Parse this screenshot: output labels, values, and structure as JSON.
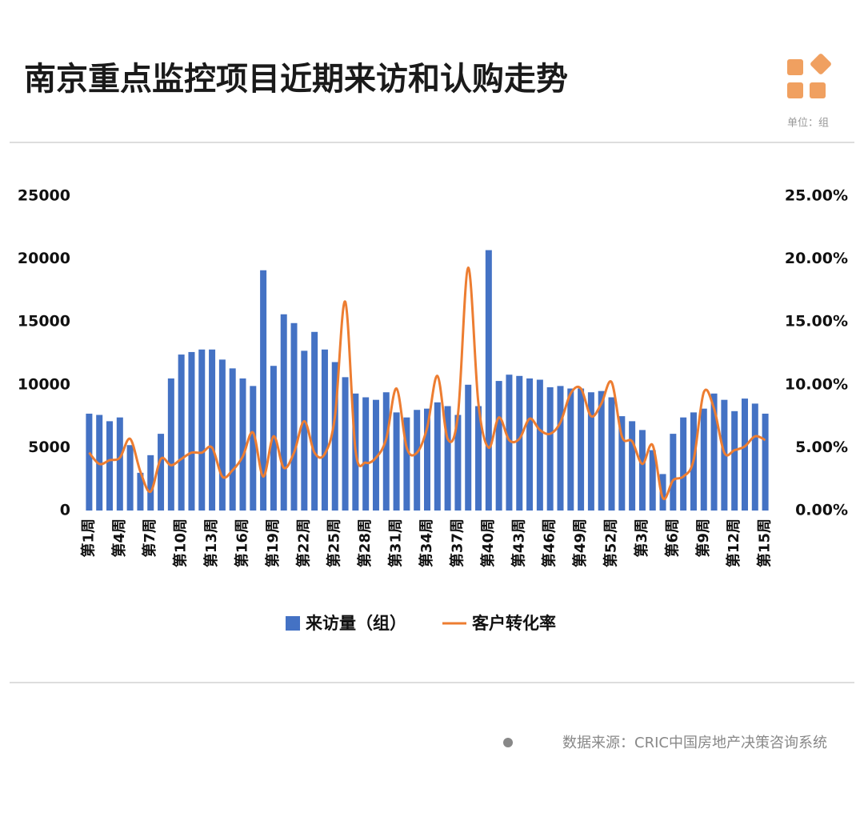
{
  "chart_data": {
    "type": "bar_line",
    "title": "南京重点监控项目近期来访和认购走势",
    "unit": "单位：组",
    "source": "数据来源：CRIC中国房地产决策咨询系统",
    "categories": [
      "第1周",
      null,
      null,
      "第4周",
      null,
      null,
      "第7周",
      null,
      null,
      "第10周",
      null,
      null,
      "第13周",
      null,
      null,
      "第16周",
      null,
      null,
      "第19周",
      null,
      null,
      "第22周",
      null,
      null,
      "第25周",
      null,
      null,
      "第28周",
      null,
      null,
      "第31周",
      null,
      null,
      "第34周",
      null,
      null,
      "第37周",
      null,
      null,
      "第40周",
      null,
      null,
      "第43周",
      null,
      null,
      "第46周",
      null,
      null,
      "第49周",
      null,
      null,
      "第52周",
      null,
      null,
      "第3周",
      null,
      null,
      "第6周",
      null,
      null,
      "第9周",
      null,
      null,
      "第12周",
      null,
      null,
      "第15周"
    ],
    "series": [
      {
        "name": "来访量（组）",
        "type": "bar",
        "color": "#4472c4",
        "values": [
          7700,
          7600,
          7100,
          7400,
          5200,
          3000,
          4400,
          6100,
          10500,
          12400,
          12600,
          12800,
          12800,
          12000,
          11300,
          10500,
          9900,
          19100,
          11500,
          15600,
          14900,
          12700,
          14200,
          12800,
          11800,
          10600,
          9300,
          9000,
          8800,
          9400,
          7800,
          7400,
          8000,
          8100,
          8600,
          8300,
          7600,
          10000,
          8300,
          20700,
          10300,
          10800,
          10700,
          10500,
          10400,
          9800,
          9900,
          9700,
          9700,
          9400,
          9500,
          9000,
          7500,
          7100,
          6400,
          4800,
          2900,
          6100,
          7400,
          7800,
          8100,
          9300,
          8800,
          7900,
          8900,
          8500,
          7700
        ]
      },
      {
        "name": "客户转化率",
        "type": "line",
        "axis": "y2",
        "color": "#ed7d31",
        "values": [
          4.6,
          3.7,
          4.0,
          4.2,
          5.7,
          3.1,
          1.5,
          4.1,
          3.6,
          4.1,
          4.6,
          4.6,
          5.0,
          2.7,
          3.2,
          4.3,
          6.2,
          2.7,
          5.9,
          3.4,
          4.6,
          7.1,
          4.6,
          4.5,
          7.5,
          16.6,
          4.8,
          3.8,
          4.2,
          5.7,
          9.7,
          5.0,
          4.6,
          6.6,
          10.7,
          5.7,
          7.6,
          19.3,
          8.5,
          5.0,
          7.4,
          5.6,
          5.7,
          7.3,
          6.4,
          6.1,
          7.0,
          9.3,
          9.7,
          7.5,
          8.5,
          10.2,
          5.9,
          5.5,
          3.7,
          5.2,
          1.0,
          2.4,
          2.7,
          4.0,
          9.4,
          8.1,
          4.6,
          4.8,
          5.1,
          5.9,
          5.6
        ]
      }
    ],
    "ylim": [
      0,
      25000
    ],
    "yticks": [
      0,
      5000,
      10000,
      15000,
      20000,
      25000
    ],
    "y2lim": [
      0,
      25
    ],
    "y2ticks": [
      {
        "value": 0,
        "label": "0.00%"
      },
      {
        "value": 5,
        "label": "5.00%"
      },
      {
        "value": 10,
        "label": "10.00%"
      },
      {
        "value": 15,
        "label": "15.00%"
      },
      {
        "value": 20,
        "label": "20.00%"
      },
      {
        "value": 25,
        "label": "25.00%"
      }
    ]
  }
}
